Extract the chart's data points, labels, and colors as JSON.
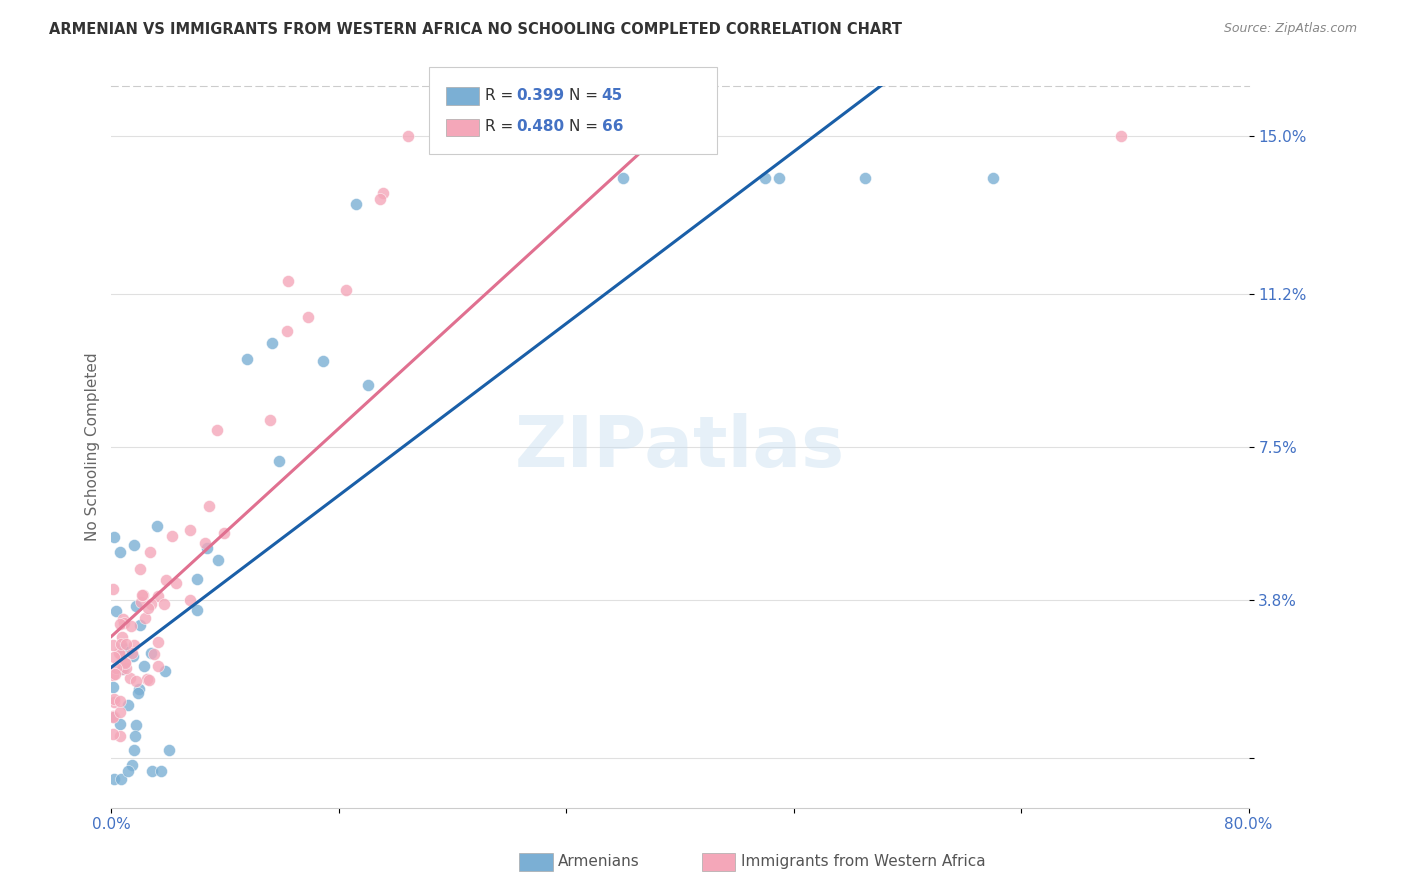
{
  "title": "ARMENIAN VS IMMIGRANTS FROM WESTERN AFRICA NO SCHOOLING COMPLETED CORRELATION CHART",
  "source": "Source: ZipAtlas.com",
  "ylabel": "No Schooling Completed",
  "ytick_labels": [
    "",
    "3.8%",
    "7.5%",
    "11.2%",
    "15.0%"
  ],
  "ytick_values": [
    0.0,
    0.038,
    0.075,
    0.112,
    0.15
  ],
  "xlim": [
    0.0,
    0.8
  ],
  "ylim": [
    -0.012,
    0.162
  ],
  "legend1_r": "0.399",
  "legend1_n": "45",
  "legend2_r": "0.480",
  "legend2_n": "66",
  "legend_bottom_label1": "Armenians",
  "legend_bottom_label2": "Immigrants from Western Africa",
  "color_armenian": "#7bafd4",
  "color_western_africa": "#f4a7b9",
  "color_line_armenian": "#1a5fa8",
  "color_line_western_africa": "#e07090",
  "watermark": "ZIPatlas",
  "title_color": "#333333",
  "axis_color": "#4472c4",
  "grid_color": "#e0e0e0",
  "background_color": "#ffffff"
}
